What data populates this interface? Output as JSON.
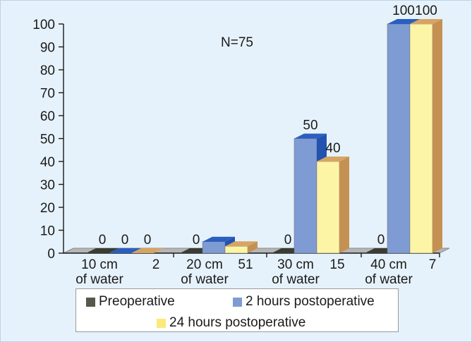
{
  "chart_data": {
    "type": "bar",
    "categories": [
      "10 cm\nof water",
      "20 cm\nof water",
      "30 cm\nof water",
      "40 cm\nof water"
    ],
    "category_side_values": [
      "2",
      "51",
      "15",
      "7"
    ],
    "series": [
      {
        "name": "Preoperative",
        "values": [
          0,
          0,
          0,
          0
        ],
        "labels": [
          "0",
          "0",
          "0",
          "0"
        ],
        "color": "#55584a"
      },
      {
        "name": "2 hours postoperative",
        "values": [
          0,
          5,
          50,
          100
        ],
        "labels": [
          "0",
          "",
          "50",
          "100"
        ],
        "color": "#7f9bd4"
      },
      {
        "name": "24 hours postoperative",
        "values": [
          0,
          3,
          40,
          100
        ],
        "labels": [
          "0",
          "",
          "40",
          "100"
        ],
        "color": "#fdf5a6"
      }
    ],
    "annotation": "N=75",
    "ylim": [
      0,
      100
    ],
    "yticks": [
      0,
      10,
      20,
      30,
      40,
      50,
      60,
      70,
      80,
      90,
      100
    ],
    "grid": false,
    "legend_position": "bottom",
    "colors": {
      "background": "#e6f2fb",
      "floor": "#b5b5b5",
      "preop_side": "#2f3127",
      "post2_side": "#2253b0",
      "post24_side": "#c49152"
    }
  }
}
